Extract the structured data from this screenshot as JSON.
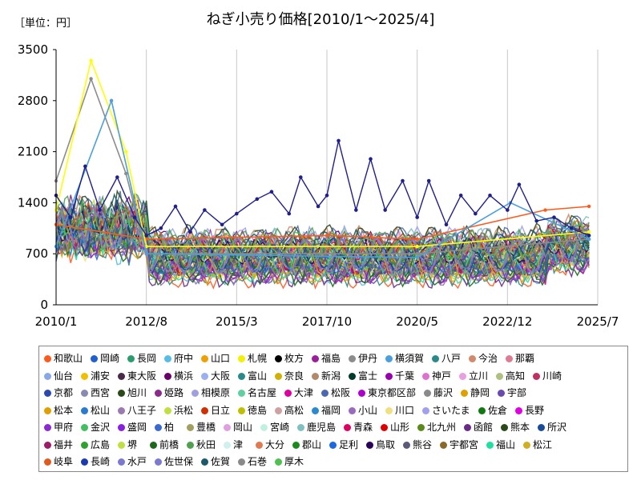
{
  "header": {
    "unit_label": "［単位：円］",
    "title": "ねぎ小売り価格[2010/1～2025/4]"
  },
  "chart_data": {
    "type": "line",
    "title": "ねぎ小売り価格[2010/1～2025/4]",
    "unit": "［単位：円］",
    "xlabel": "",
    "ylabel": "",
    "x_range": [
      "2010/1",
      "2025/7"
    ],
    "x_ticks": [
      "2010/1",
      "2012/8",
      "2015/3",
      "2017/10",
      "2020/5",
      "2022/12",
      "2025/7"
    ],
    "ylim": [
      0,
      3500
    ],
    "y_ticks": [
      0,
      700,
      1400,
      2100,
      2800,
      3500
    ],
    "grid": "vertical",
    "legend_position": "bottom",
    "highlight_series": {
      "name": "枚方",
      "color": "#1f1f8f",
      "points": [
        [
          "2010/1",
          1500
        ],
        [
          "2010/6",
          1200
        ],
        [
          "2010/11",
          1900
        ],
        [
          "2011/4",
          1300
        ],
        [
          "2011/10",
          1750
        ],
        [
          "2012/4",
          1200
        ],
        [
          "2012/8",
          950
        ],
        [
          "2013/1",
          1050
        ],
        [
          "2013/6",
          1350
        ],
        [
          "2013/11",
          1000
        ],
        [
          "2014/4",
          1300
        ],
        [
          "2014/10",
          1100
        ],
        [
          "2015/3",
          1250
        ],
        [
          "2015/10",
          1450
        ],
        [
          "2016/3",
          1550
        ],
        [
          "2016/9",
          1250
        ],
        [
          "2017/1",
          1750
        ],
        [
          "2017/7",
          1350
        ],
        [
          "2017/10",
          1500
        ],
        [
          "2018/2",
          2250
        ],
        [
          "2018/8",
          1300
        ],
        [
          "2019/1",
          2000
        ],
        [
          "2019/6",
          1300
        ],
        [
          "2019/12",
          1700
        ],
        [
          "2020/5",
          1200
        ],
        [
          "2020/9",
          1700
        ],
        [
          "2021/3",
          1100
        ],
        [
          "2021/8",
          1500
        ],
        [
          "2022/1",
          1250
        ],
        [
          "2022/6",
          1500
        ],
        [
          "2022/12",
          1300
        ],
        [
          "2023/4",
          1650
        ],
        [
          "2023/10",
          1150
        ],
        [
          "2024/4",
          1200
        ],
        [
          "2024/10",
          1050
        ],
        [
          "2025/4",
          950
        ]
      ]
    },
    "series_note_values": [
      {
        "name": "和歌山",
        "color": "#ff5a1e",
        "points": [
          [
            "2010/1",
            1100
          ],
          [
            "2012/8",
            900
          ],
          [
            "2017/10",
            950
          ],
          [
            "2020/5",
            900
          ],
          [
            "2024/1",
            1300
          ],
          [
            "2025/4",
            1350
          ]
        ]
      },
      {
        "name": "伊丹",
        "color": "#8c8c8c",
        "points": [
          [
            "2010/1",
            1700
          ],
          [
            "2011/1",
            3100
          ],
          [
            "2012/1",
            1800
          ],
          [
            "2012/8",
            700
          ],
          [
            "2020/5",
            700
          ],
          [
            "2025/4",
            900
          ]
        ]
      },
      {
        "name": "札幌",
        "color": "#ffff00",
        "points": [
          [
            "2010/1",
            1300
          ],
          [
            "2011/1",
            3350
          ],
          [
            "2012/1",
            2100
          ],
          [
            "2012/8",
            800
          ],
          [
            "2020/5",
            800
          ],
          [
            "2025/4",
            1000
          ]
        ]
      },
      {
        "name": "横須賀",
        "color": "#4a9fe0",
        "points": [
          [
            "2010/1",
            800
          ],
          [
            "2011/8",
            2800
          ],
          [
            "2012/8",
            700
          ],
          [
            "2020/5",
            650
          ],
          [
            "2023/1",
            1400
          ],
          [
            "2025/4",
            900
          ]
        ]
      }
    ],
    "legend": [
      [
        "和歌山",
        "岡崎",
        "長岡",
        "府中",
        "山口",
        "札幌",
        "枚方",
        "福島",
        "伊丹",
        "横須賀",
        "八戸",
        "今治",
        "那覇"
      ],
      [
        "仙台",
        "浦安",
        "東大阪",
        "横浜",
        "大阪",
        "富山",
        "奈良",
        "新潟",
        "富士",
        "千葉",
        "神戸",
        "立川",
        "高知",
        "川崎"
      ],
      [
        "京都",
        "西宮",
        "旭川",
        "姫路",
        "相模原",
        "名古屋",
        "大津",
        "松阪",
        "東京都区部",
        "藤沢",
        "静岡",
        "宇部"
      ],
      [
        "松本",
        "松山",
        "八王子",
        "浜松",
        "日立",
        "徳島",
        "高松",
        "福岡",
        "小山",
        "川口",
        "さいたま",
        "佐倉",
        "長野"
      ],
      [
        "甲府",
        "金沢",
        "盛岡",
        "柏",
        "豊橋",
        "岡山",
        "宮崎",
        "鹿児島",
        "青森",
        "山形",
        "北九州",
        "函館",
        "熊本",
        "所沢"
      ],
      [
        "福井",
        "広島",
        "堺",
        "前橋",
        "秋田",
        "津",
        "大分",
        "郡山",
        "足利",
        "鳥取",
        "熊谷",
        "宇都宮",
        "福山",
        "松江"
      ],
      [
        "岐阜",
        "長崎",
        "水戸",
        "佐世保",
        "佐賀",
        "石巻",
        "厚木"
      ]
    ],
    "legend_colors": [
      [
        "#ff5a1e",
        "#1f5fd0",
        "#2a9d6f",
        "#55bde8",
        "#f0a000",
        "#f5f000",
        "#000000",
        "#9b1f9b",
        "#8c8c8c",
        "#4a9fe0",
        "#2a8a8a",
        "#d48a6a",
        "#e07a90"
      ],
      [
        "#8aa8e8",
        "#f0c000",
        "#4a2a4a",
        "#6a006a",
        "#9ab0f0",
        "#2a8a8a",
        "#d0b000",
        "#b08a6a",
        "#003a2a",
        "#9b00b0",
        "#e070d0",
        "#e8a0e0",
        "#b0c080",
        "#c03060"
      ],
      [
        "#2a4ab0",
        "#8a8ab0",
        "#2a4a1a",
        "#8a2a8a",
        "#a0a0e0",
        "#60d0a0",
        "#e000a0",
        "#4a6ab0",
        "#b000d0",
        "#8a8a8a",
        "#e0a000",
        "#6a4ab0"
      ],
      [
        "#e0a000",
        "#2a7ad0",
        "#9a7ab0",
        "#c0e040",
        "#d03000",
        "#c0c000",
        "#d0a0a0",
        "#2a8ad0",
        "#9a6ac0",
        "#f0e080",
        "#a0a0f0",
        "#107a10",
        "#e000e0"
      ],
      [
        "#8a2ad0",
        "#40c060",
        "#8a20e0",
        "#3a6ad0",
        "#a0a060",
        "#e0a0e0",
        "#c0f0e0",
        "#80c0c0",
        "#e00060",
        "#e00000",
        "#5a8a1a",
        "#6a2a8a",
        "#2a4a1a",
        "#1a4a9a"
      ],
      [
        "#a01a6a",
        "#30a030",
        "#c0e040",
        "#1a6a1a",
        "#50a050",
        "#d0f0f0",
        "#e07a50",
        "#1a8a1a",
        "#1a6ae0",
        "#2a005a",
        "#5a5a7a",
        "#8a6a2a",
        "#20e0a0",
        "#d0b020"
      ],
      [
        "#e05a1e",
        "#1a3ab0",
        "#7a7ad0",
        "#7a7ad0",
        "#1a5a6a",
        "#8a8a8a",
        "#50c050"
      ]
    ]
  }
}
